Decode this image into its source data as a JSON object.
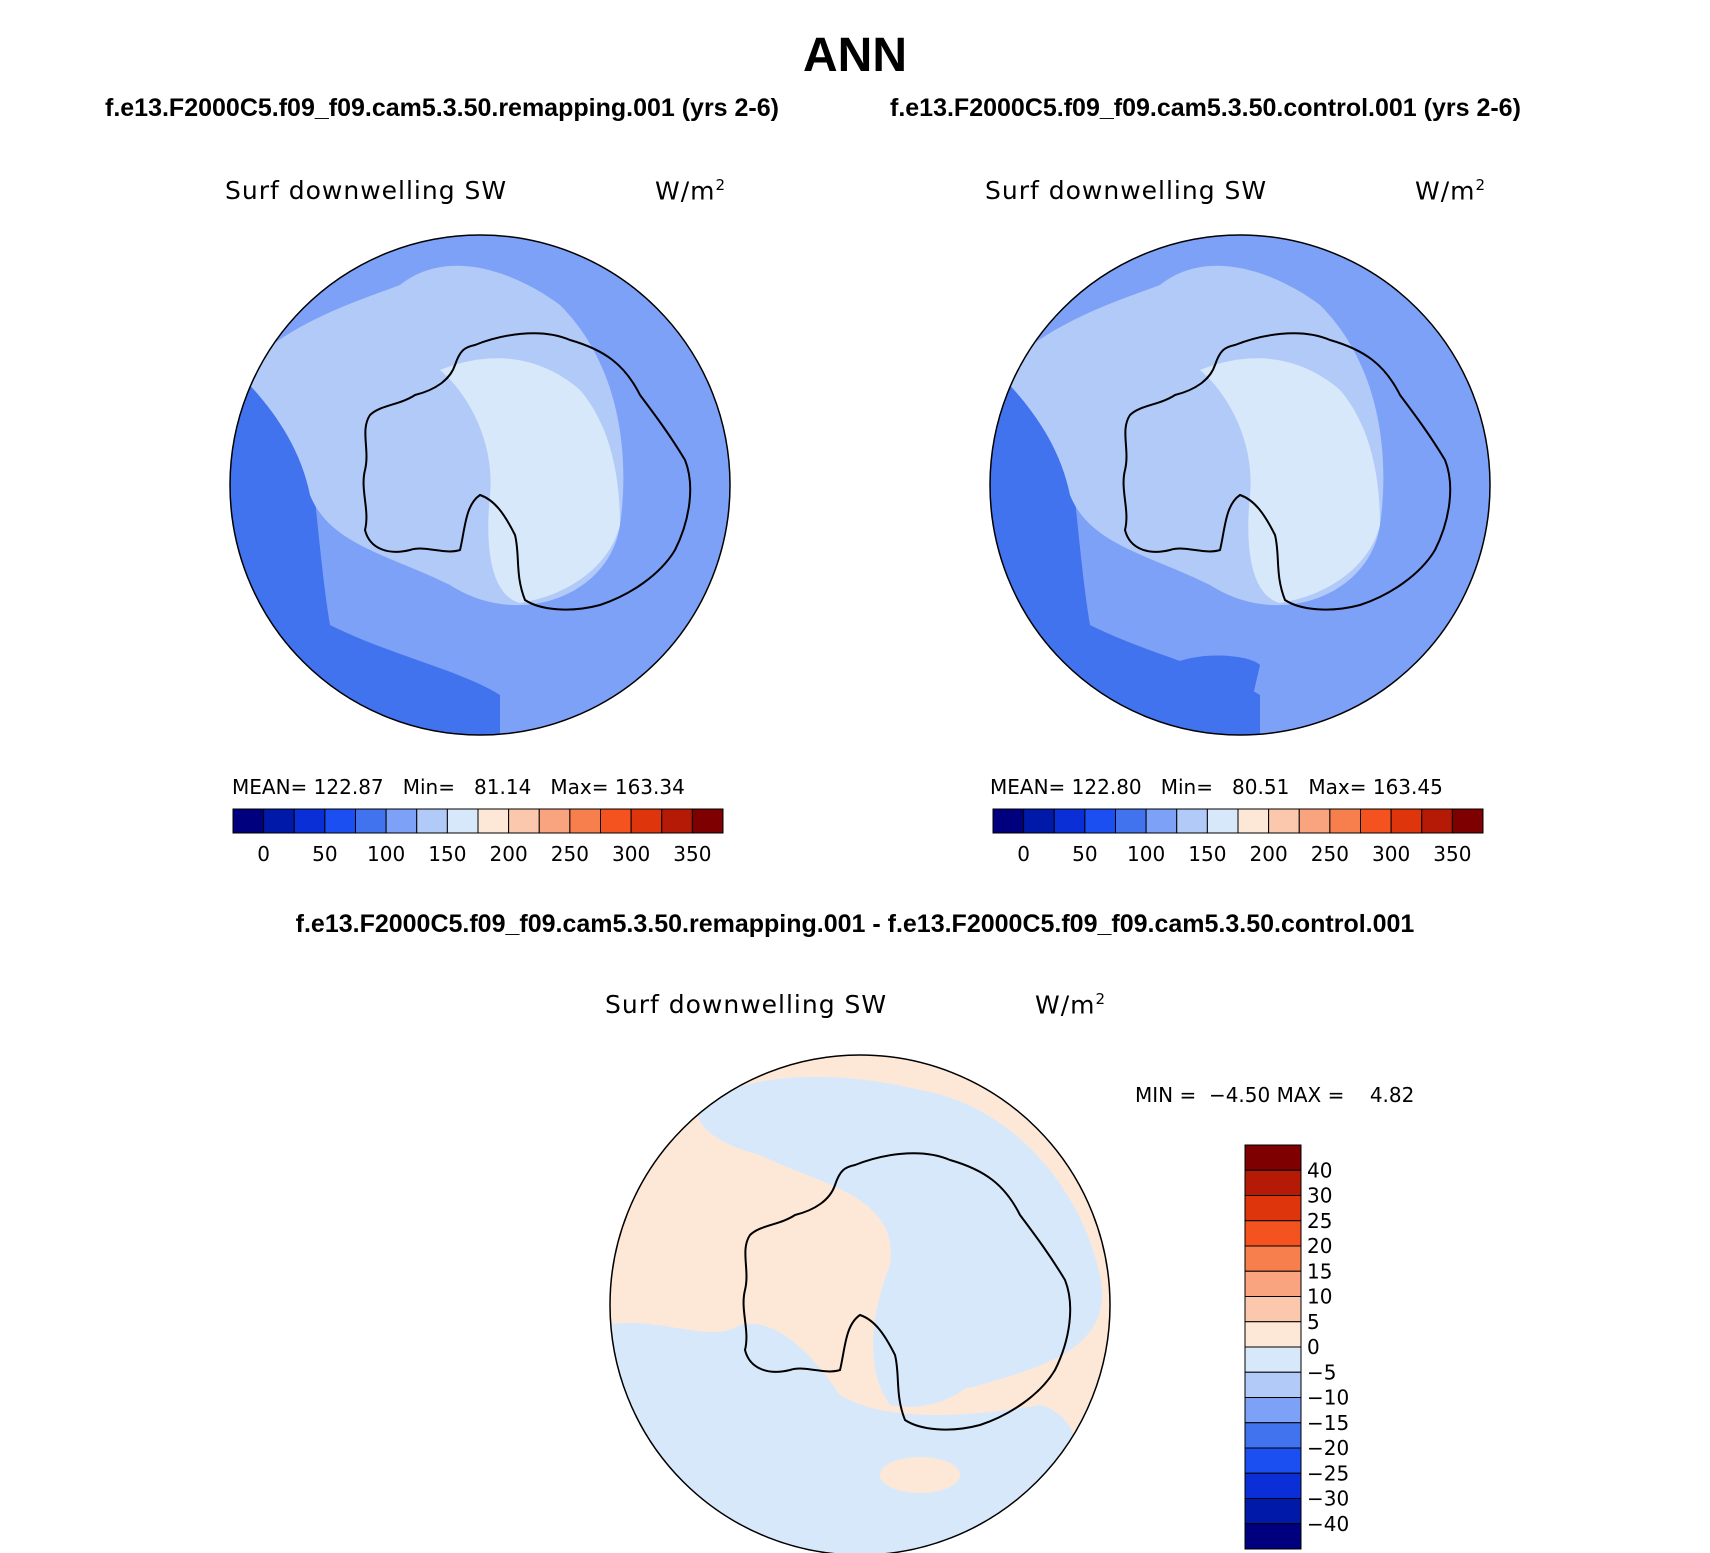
{
  "figure": {
    "title": "ANN",
    "case1_title": "f.e13.F2000C5.f09_f09.cam5.3.50.remapping.001 (yrs 2-6)",
    "case2_title": "f.e13.F2000C5.f09_f09.cam5.3.50.control.001 (yrs 2-6)",
    "diff_title": "f.e13.F2000C5.f09_f09.cam5.3.50.remapping.001 - f.e13.F2000C5.f09_f09.cam5.3.50.control.001"
  },
  "panels": [
    {
      "variable": "Surf downwelling SW",
      "units": "W/m",
      "units_sup": "2",
      "stats": {
        "mean_label": "MEAN=",
        "mean": "122.87",
        "min_label": "Min=",
        "min": "81.14",
        "max_label": "Max=",
        "max": "163.34"
      }
    },
    {
      "variable": "Surf downwelling SW",
      "units": "W/m",
      "units_sup": "2",
      "stats": {
        "mean_label": "MEAN=",
        "mean": "122.80",
        "min_label": "Min=",
        "min": "80.51",
        "max_label": "Max=",
        "max": "163.45"
      }
    },
    {
      "variable": "Surf downwelling SW",
      "units": "W/m",
      "units_sup": "2",
      "stats": {
        "min_label": "MIN =",
        "min": "−4.50",
        "max_label": "MAX =",
        "max": "4.82"
      }
    }
  ],
  "colorbar_abs": {
    "colors": [
      "#00007f",
      "#0019a8",
      "#0a2fd6",
      "#1b4ff2",
      "#4173ee",
      "#7ea1f8",
      "#b2caf8",
      "#d8e8fb",
      "#fde8d8",
      "#fcc8ad",
      "#f9a47f",
      "#f77f4d",
      "#f4521f",
      "#de350d",
      "#b41a05",
      "#7f0000"
    ],
    "tick_labels": [
      "0",
      "50",
      "100",
      "150",
      "200",
      "250",
      "300",
      "350"
    ]
  },
  "colorbar_diff": {
    "colors": [
      "#00007f",
      "#0019a8",
      "#0a2fd6",
      "#1b4ff2",
      "#4173ee",
      "#7ea1f8",
      "#b2caf8",
      "#d8e8fb",
      "#fde8d8",
      "#fcc8ad",
      "#f9a47f",
      "#f77f4d",
      "#f4521f",
      "#de350d",
      "#b41a05",
      "#7f0000"
    ],
    "tick_labels": [
      "−40",
      "−30",
      "−25",
      "−20",
      "−15",
      "−10",
      "−5",
      "0",
      "5",
      "10",
      "15",
      "20",
      "25",
      "30",
      "40"
    ]
  },
  "map_colors": {
    "deep": "#4173ee",
    "ocean": "#7ea1f8",
    "mid": "#b2caf8",
    "light": "#d8e8fb",
    "diff_neg": "#d8e8fb",
    "diff_pos": "#fde8d8"
  }
}
